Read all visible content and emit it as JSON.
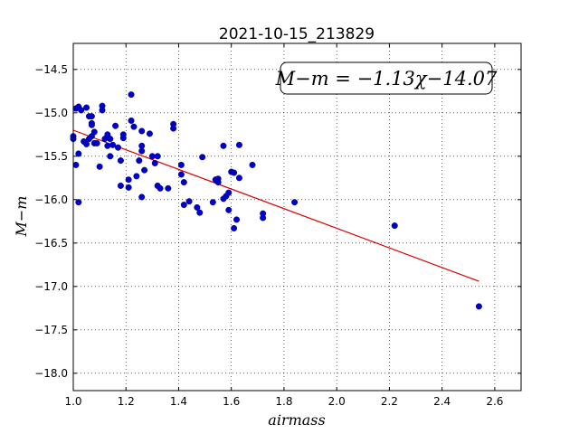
{
  "chart_data": {
    "type": "scatter",
    "title": "2021-10-15_213829",
    "xlabel": "airmass",
    "ylabel": "M−m",
    "xlim": [
      1.0,
      2.7
    ],
    "ylim": [
      -18.2,
      -14.2
    ],
    "xticks": [
      1.0,
      1.2,
      1.4,
      1.6,
      1.8,
      2.0,
      2.2,
      2.4,
      2.6
    ],
    "xtick_labels": [
      "1.0",
      "1.2",
      "1.4",
      "1.6",
      "1.8",
      "2.0",
      "2.2",
      "2.4",
      "2.6"
    ],
    "yticks": [
      -14.5,
      -15.0,
      -15.5,
      -16.0,
      -16.5,
      -17.0,
      -17.5,
      -18.0
    ],
    "ytick_labels": [
      "−14.5",
      "−15.0",
      "−15.5",
      "−16.0",
      "−16.5",
      "−17.0",
      "−17.5",
      "−18.0"
    ],
    "grid": true,
    "annotation": "M−m = −1.13χ−14.07",
    "marker_color": "#0000cc",
    "fit_color": "#dd0000",
    "fit": {
      "slope": -1.13,
      "intercept": -14.07,
      "x_range": [
        1.0,
        2.54
      ]
    },
    "points": [
      [
        1.01,
        -14.95
      ],
      [
        1.02,
        -14.93
      ],
      [
        1.03,
        -14.97
      ],
      [
        1.05,
        -14.94
      ],
      [
        1.06,
        -15.04
      ],
      [
        1.07,
        -15.04
      ],
      [
        1.07,
        -15.12
      ],
      [
        1.07,
        -15.14
      ],
      [
        1.08,
        -15.22
      ],
      [
        1.07,
        -15.27
      ],
      [
        1.06,
        -15.3
      ],
      [
        1.08,
        -15.35
      ],
      [
        1.09,
        -15.35
      ],
      [
        1.04,
        -15.33
      ],
      [
        1.05,
        -15.36
      ],
      [
        1.0,
        -15.27
      ],
      [
        1.0,
        -15.3
      ],
      [
        1.02,
        -15.47
      ],
      [
        1.01,
        -15.6
      ],
      [
        1.02,
        -16.03
      ],
      [
        1.1,
        -15.62
      ],
      [
        1.11,
        -14.92
      ],
      [
        1.11,
        -14.97
      ],
      [
        1.12,
        -15.3
      ],
      [
        1.13,
        -15.25
      ],
      [
        1.13,
        -15.38
      ],
      [
        1.14,
        -15.3
      ],
      [
        1.14,
        -15.5
      ],
      [
        1.15,
        -15.37
      ],
      [
        1.16,
        -15.15
      ],
      [
        1.17,
        -15.4
      ],
      [
        1.18,
        -15.55
      ],
      [
        1.18,
        -15.84
      ],
      [
        1.19,
        -15.25
      ],
      [
        1.19,
        -15.29
      ],
      [
        1.21,
        -15.77
      ],
      [
        1.21,
        -15.86
      ],
      [
        1.22,
        -14.79
      ],
      [
        1.22,
        -15.09
      ],
      [
        1.23,
        -15.16
      ],
      [
        1.24,
        -15.73
      ],
      [
        1.25,
        -15.55
      ],
      [
        1.26,
        -15.38
      ],
      [
        1.26,
        -15.44
      ],
      [
        1.26,
        -15.97
      ],
      [
        1.26,
        -15.21
      ],
      [
        1.27,
        -15.66
      ],
      [
        1.29,
        -15.24
      ],
      [
        1.3,
        -15.5
      ],
      [
        1.31,
        -15.58
      ],
      [
        1.32,
        -15.5
      ],
      [
        1.32,
        -15.84
      ],
      [
        1.33,
        -15.87
      ],
      [
        1.36,
        -15.87
      ],
      [
        1.38,
        -15.13
      ],
      [
        1.38,
        -15.18
      ],
      [
        1.41,
        -15.6
      ],
      [
        1.41,
        -15.71
      ],
      [
        1.42,
        -15.8
      ],
      [
        1.42,
        -16.06
      ],
      [
        1.44,
        -16.02
      ],
      [
        1.47,
        -16.09
      ],
      [
        1.48,
        -16.15
      ],
      [
        1.49,
        -15.51
      ],
      [
        1.53,
        -16.03
      ],
      [
        1.54,
        -15.77
      ],
      [
        1.55,
        -15.76
      ],
      [
        1.55,
        -15.8
      ],
      [
        1.57,
        -15.38
      ],
      [
        1.57,
        -15.99
      ],
      [
        1.58,
        -15.96
      ],
      [
        1.59,
        -15.92
      ],
      [
        1.59,
        -16.12
      ],
      [
        1.6,
        -15.68
      ],
      [
        1.61,
        -15.69
      ],
      [
        1.61,
        -16.33
      ],
      [
        1.62,
        -16.23
      ],
      [
        1.63,
        -15.37
      ],
      [
        1.63,
        -15.75
      ],
      [
        1.68,
        -15.6
      ],
      [
        1.72,
        -16.21
      ],
      [
        1.72,
        -16.16
      ],
      [
        1.84,
        -16.03
      ],
      [
        2.22,
        -16.3
      ],
      [
        2.54,
        -17.23
      ]
    ]
  }
}
